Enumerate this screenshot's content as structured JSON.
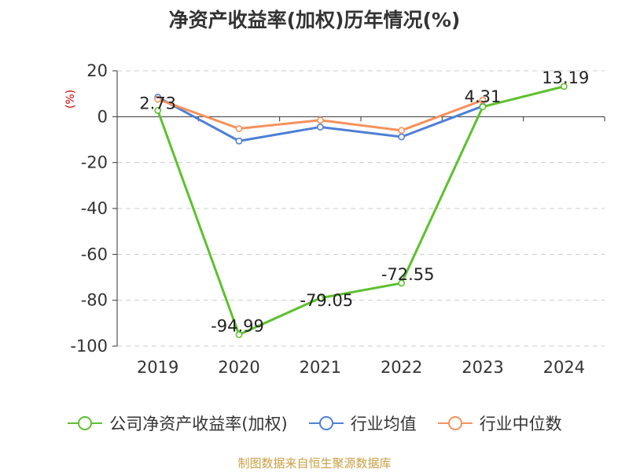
{
  "chart_data": {
    "type": "line",
    "title": "净资产收益率(加权)历年情况(%)",
    "ylabel": "(%)",
    "xlabel": "",
    "categories": [
      "2019",
      "2020",
      "2021",
      "2022",
      "2023",
      "2024"
    ],
    "ylim": [
      -100,
      20
    ],
    "yticks": [
      20,
      0,
      -20,
      -40,
      -60,
      -80,
      -100
    ],
    "grid": true,
    "legend_position": "bottom",
    "series": [
      {
        "name": "公司净资产收益率(加权)",
        "color": "#5ec02e",
        "values": [
          2.73,
          -94.99,
          -79.05,
          -72.55,
          4.31,
          13.19
        ],
        "labels": [
          "2.73",
          "-94.99",
          "-79.05",
          "-72.55",
          "4.31",
          "13.19"
        ]
      },
      {
        "name": "行业均值",
        "color": "#4f7fd6",
        "values": [
          8.5,
          -10.6,
          -4.5,
          -8.8,
          4.6,
          null
        ]
      },
      {
        "name": "行业中位数",
        "color": "#f5915c",
        "values": [
          7.6,
          -5.2,
          -1.5,
          -6.0,
          7.2,
          null
        ]
      }
    ]
  },
  "source": "制图数据来自恒生聚源数据库"
}
